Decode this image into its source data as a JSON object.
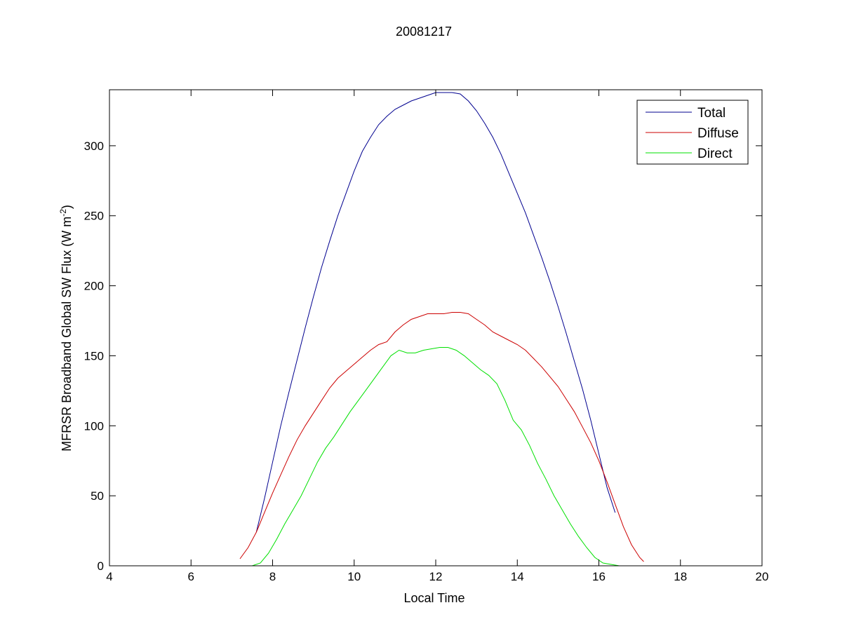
{
  "chart_data": {
    "type": "line",
    "title": "20081217",
    "xlabel": "Local Time",
    "ylabel_main": "MFRSR Broadband Global SW Flux (W m",
    "ylabel_sup": "-2",
    "ylabel_close": ")",
    "xlim": [
      4,
      20
    ],
    "ylim": [
      0,
      340
    ],
    "xticks": [
      4,
      6,
      8,
      10,
      12,
      14,
      16,
      18,
      20
    ],
    "yticks": [
      0,
      50,
      100,
      150,
      200,
      250,
      300
    ],
    "grid": false,
    "legend_position": "top-right",
    "series": [
      {
        "name": "Total",
        "color": "#00008f",
        "x": [
          7.6,
          7.8,
          8.0,
          8.2,
          8.4,
          8.6,
          8.8,
          9.0,
          9.2,
          9.4,
          9.6,
          9.8,
          10.0,
          10.2,
          10.4,
          10.6,
          10.8,
          11.0,
          11.2,
          11.4,
          11.6,
          11.8,
          12.0,
          12.2,
          12.4,
          12.6,
          12.8,
          13.0,
          13.2,
          13.4,
          13.6,
          13.8,
          14.0,
          14.2,
          14.4,
          14.6,
          14.8,
          15.0,
          15.2,
          15.4,
          15.6,
          15.8,
          16.0,
          16.2,
          16.4
        ],
        "y": [
          24,
          48,
          74,
          100,
          124,
          147,
          170,
          192,
          213,
          232,
          250,
          266,
          282,
          296,
          306,
          315,
          321,
          326,
          329,
          332,
          334,
          336,
          338,
          338,
          338,
          337,
          332,
          325,
          316,
          306,
          294,
          280,
          266,
          252,
          236,
          220,
          203,
          185,
          166,
          146,
          126,
          104,
          80,
          56,
          38
        ]
      },
      {
        "name": "Diffuse",
        "color": "#cc0000",
        "x": [
          7.2,
          7.4,
          7.6,
          7.8,
          8.0,
          8.2,
          8.4,
          8.6,
          8.8,
          9.0,
          9.2,
          9.4,
          9.6,
          9.8,
          10.0,
          10.2,
          10.4,
          10.6,
          10.8,
          11.0,
          11.2,
          11.4,
          11.6,
          11.8,
          12.0,
          12.2,
          12.4,
          12.6,
          12.8,
          13.0,
          13.2,
          13.4,
          13.6,
          13.8,
          14.0,
          14.2,
          14.4,
          14.6,
          14.8,
          15.0,
          15.2,
          15.4,
          15.6,
          15.8,
          16.0,
          16.2,
          16.4,
          16.6,
          16.8,
          17.0,
          17.1
        ],
        "y": [
          5,
          13,
          24,
          38,
          52,
          65,
          78,
          90,
          100,
          109,
          118,
          127,
          134,
          139,
          144,
          149,
          154,
          158,
          160,
          167,
          172,
          176,
          178,
          180,
          180,
          180,
          181,
          181,
          180,
          176,
          172,
          167,
          164,
          161,
          158,
          154,
          148,
          142,
          135,
          128,
          119,
          110,
          99,
          88,
          75,
          60,
          44,
          28,
          15,
          6,
          3
        ]
      },
      {
        "name": "Direct",
        "color": "#00e000",
        "x": [
          7.5,
          7.7,
          7.9,
          8.1,
          8.3,
          8.5,
          8.7,
          8.9,
          9.1,
          9.3,
          9.5,
          9.7,
          9.9,
          10.1,
          10.3,
          10.5,
          10.7,
          10.9,
          11.1,
          11.3,
          11.5,
          11.7,
          11.9,
          12.1,
          12.3,
          12.5,
          12.7,
          12.9,
          13.1,
          13.3,
          13.5,
          13.7,
          13.9,
          14.1,
          14.3,
          14.5,
          14.7,
          14.9,
          15.1,
          15.3,
          15.5,
          15.7,
          15.9,
          16.1,
          16.3,
          16.5,
          16.7,
          16.9,
          17.1
        ],
        "y": [
          0,
          2,
          9,
          19,
          30,
          40,
          50,
          62,
          74,
          84,
          92,
          101,
          110,
          118,
          126,
          134,
          142,
          150,
          154,
          152,
          152,
          154,
          155,
          156,
          156,
          154,
          150,
          145,
          140,
          136,
          130,
          118,
          104,
          97,
          86,
          73,
          62,
          50,
          40,
          30,
          21,
          13,
          6,
          2,
          1,
          0,
          0,
          0,
          0
        ]
      }
    ]
  }
}
